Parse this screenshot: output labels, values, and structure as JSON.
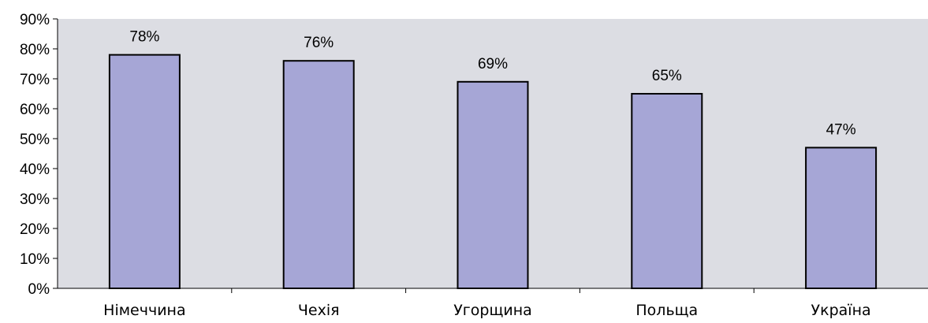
{
  "chart_data": {
    "type": "bar",
    "categories": [
      "Німеччина",
      "Чехія",
      "Угорщина",
      "Польща",
      "Україна"
    ],
    "values": [
      78,
      76,
      69,
      65,
      47
    ],
    "data_labels": [
      "78%",
      "76%",
      "69%",
      "65%",
      "47%"
    ],
    "title": "",
    "xlabel": "",
    "ylabel": "",
    "ylim": [
      0,
      90
    ],
    "y_ticks": [
      0,
      10,
      20,
      30,
      40,
      50,
      60,
      70,
      80,
      90
    ],
    "y_tick_labels": [
      "0%",
      "10%",
      "20%",
      "30%",
      "40%",
      "50%",
      "60%",
      "70%",
      "80%",
      "90%"
    ],
    "grid": false,
    "legend": false,
    "colors": {
      "plot_background": "#dcdde3",
      "bar_fill": "#a6a6d6",
      "bar_stroke": "#000000"
    }
  }
}
